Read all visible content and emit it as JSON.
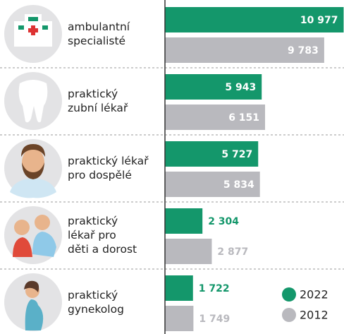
{
  "chart_data": {
    "type": "hbar",
    "categories": [
      "ambulantní\nspecialisté",
      "praktický\nzubní lékař",
      "praktický lékař\npro dospělé",
      "praktický\nlékař pro\nděti a dorost",
      "praktický\ngynekolog"
    ],
    "series": [
      {
        "name": "2022",
        "color": "#14976b",
        "values": [
          10977,
          5943,
          5727,
          2304,
          1722
        ],
        "value_labels": [
          "10 977",
          "5 943",
          "5 727",
          "2 304",
          "1 722"
        ]
      },
      {
        "name": "2012",
        "color": "#b9b9be",
        "values": [
          9783,
          6151,
          5834,
          2877,
          1749
        ],
        "value_labels": [
          "9 783",
          "6 151",
          "5 834",
          "2 877",
          "1 749"
        ]
      }
    ],
    "xlim": [
      0,
      11000
    ],
    "legend": "lower right"
  }
}
